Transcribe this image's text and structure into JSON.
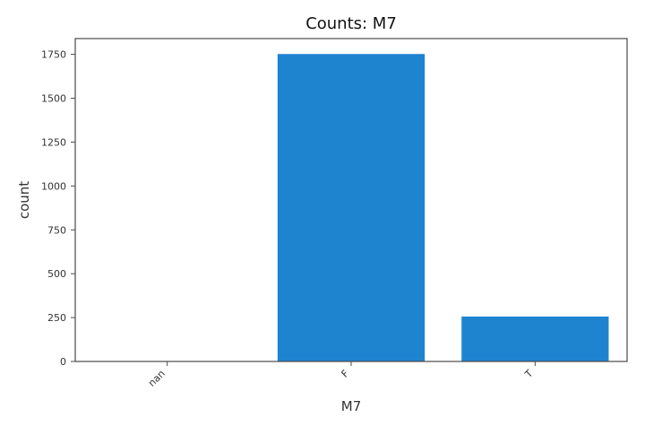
{
  "chart_data": {
    "type": "bar",
    "title": "Counts: M7",
    "xlabel": "M7",
    "ylabel": "count",
    "categories": [
      "nan",
      "F",
      "T"
    ],
    "values": [
      0,
      1752,
      256
    ],
    "ylim": [
      0,
      1840
    ],
    "yticks": [
      0,
      250,
      500,
      750,
      1000,
      1250,
      1500,
      1750
    ],
    "ytick_labels": [
      "0",
      "250",
      "500",
      "750",
      "1000",
      "1250",
      "1500",
      "1750"
    ],
    "bar_color": "#1f84d0",
    "grid": false,
    "legend": "none"
  }
}
